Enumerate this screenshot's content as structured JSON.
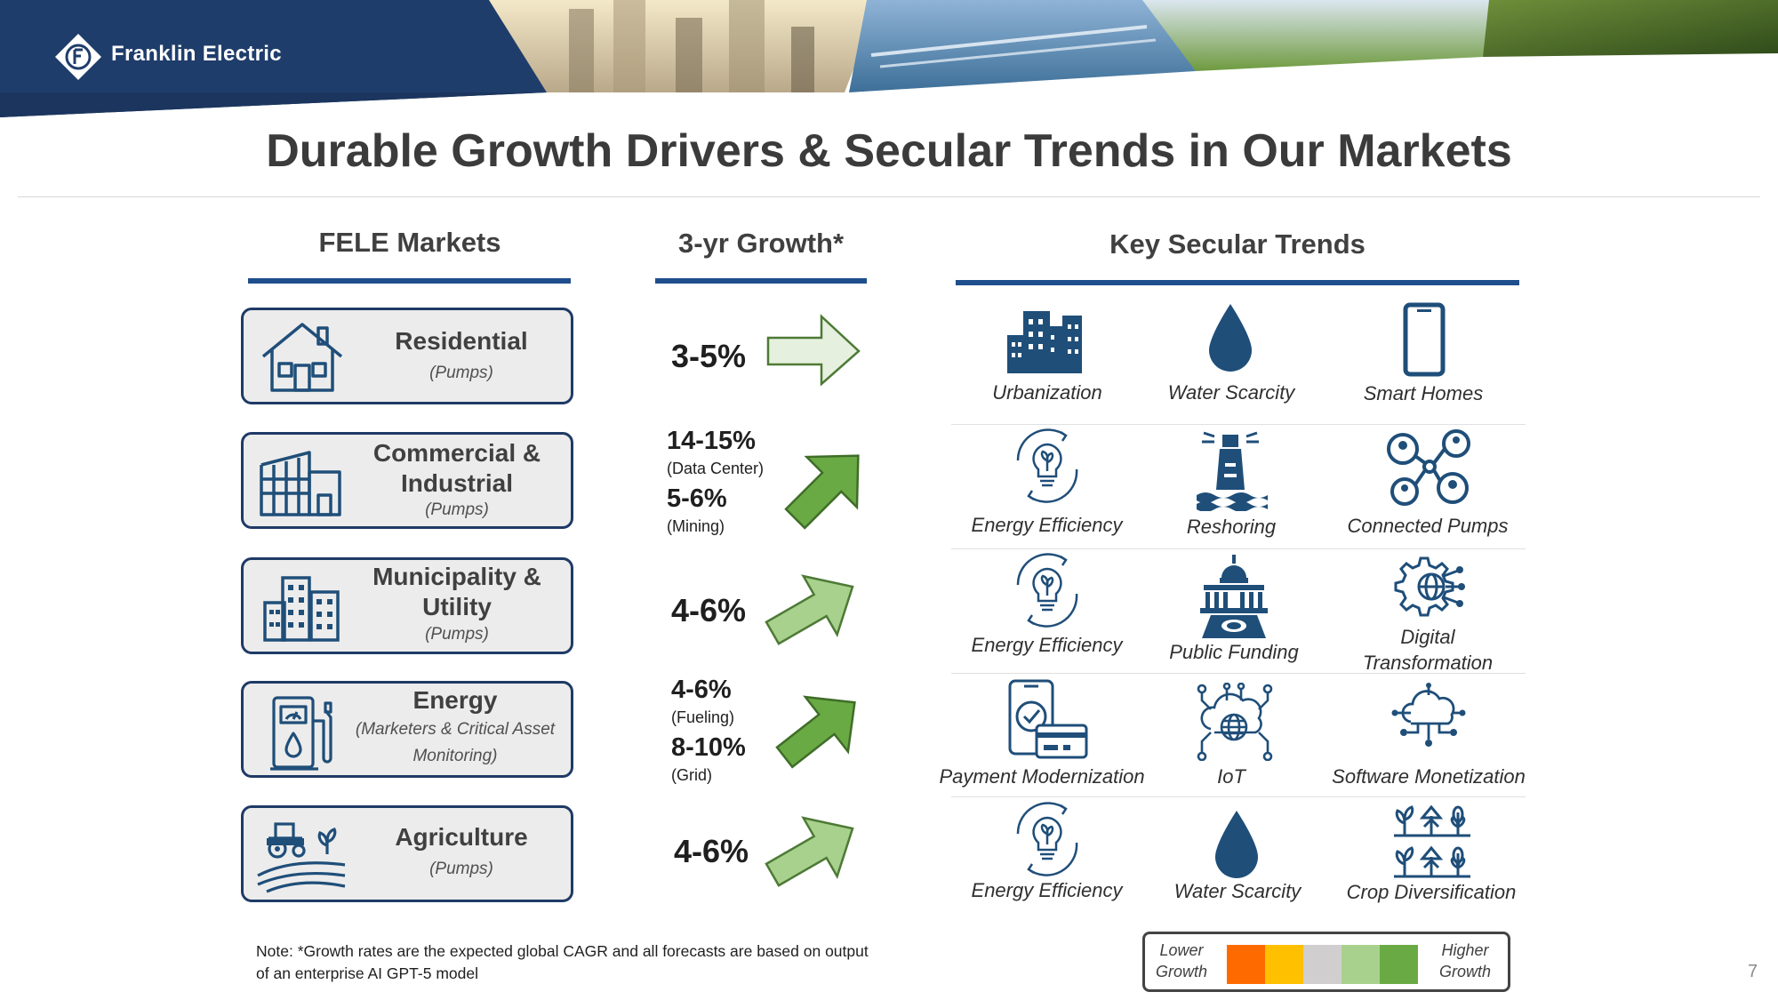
{
  "brand": {
    "name": "Franklin Electric"
  },
  "title": "Durable Growth Drivers & Secular Trends in Our Markets",
  "columns": {
    "markets": "FELE Markets",
    "growth": "3-yr Growth*",
    "trends": "Key Secular Trends"
  },
  "markets": [
    {
      "name": "Residential",
      "sub": "(Pumps)",
      "icon": "house-icon",
      "growth": [
        {
          "value": "3-5%",
          "segment": ""
        }
      ],
      "arrow_color": "#e6f0de",
      "trends": [
        {
          "label": "Urbanization",
          "icon": "city-buildings-icon"
        },
        {
          "label": "Water Scarcity",
          "icon": "water-drop-icon"
        },
        {
          "label": "Smart Homes",
          "icon": "smartphone-icon"
        }
      ]
    },
    {
      "name": "Commercial & Industrial",
      "sub": "(Pumps)",
      "icon": "factory-icon",
      "growth": [
        {
          "value": "14-15%",
          "segment": "(Data Center)"
        },
        {
          "value": "5-6%",
          "segment": "(Mining)"
        }
      ],
      "arrow_color": "#6aaa44",
      "trends": [
        {
          "label": "Energy Efficiency",
          "icon": "efficiency-bulb-icon"
        },
        {
          "label": "Reshoring",
          "icon": "lighthouse-icon"
        },
        {
          "label": "Connected Pumps",
          "icon": "connected-users-icon"
        }
      ]
    },
    {
      "name": "Municipality & Utility",
      "sub": "(Pumps)",
      "icon": "municipal-buildings-icon",
      "growth": [
        {
          "value": "4-6%",
          "segment": ""
        }
      ],
      "arrow_color": "#a9d18e",
      "trends": [
        {
          "label": "Energy Efficiency",
          "icon": "efficiency-bulb-icon"
        },
        {
          "label": "Public Funding",
          "icon": "capitol-funding-icon"
        },
        {
          "label": "Digital Transformation",
          "icon": "digital-gear-icon"
        }
      ]
    },
    {
      "name": "Energy",
      "sub": "(Marketers & Critical Asset Monitoring)",
      "icon": "fuel-pump-icon",
      "growth": [
        {
          "value": "4-6%",
          "segment": "(Fueling)"
        },
        {
          "value": "8-10%",
          "segment": "(Grid)"
        }
      ],
      "arrow_color": "#6aaa44",
      "trends": [
        {
          "label": "Payment Modernization",
          "icon": "mobile-payment-icon"
        },
        {
          "label": "IoT",
          "icon": "iot-cloud-icon"
        },
        {
          "label": "Software Monetization",
          "icon": "cloud-network-icon"
        }
      ]
    },
    {
      "name": "Agriculture",
      "sub": "(Pumps)",
      "icon": "tractor-field-icon",
      "growth": [
        {
          "value": "4-6%",
          "segment": ""
        }
      ],
      "arrow_color": "#a9d18e",
      "trends": [
        {
          "label": "Energy Efficiency",
          "icon": "efficiency-bulb-icon"
        },
        {
          "label": "Water Scarcity",
          "icon": "water-drop-icon"
        },
        {
          "label": "Crop Diversification",
          "icon": "crops-icon"
        }
      ]
    }
  ],
  "note": "Note: *Growth rates are the expected global CAGR and all forecasts are based on output of an enterprise AI GPT-5 model",
  "legend": {
    "low": "Lower Growth",
    "high": "Higher Growth",
    "scale_colors": [
      "#ff6a00",
      "#ffc000",
      "#d0cece",
      "#a9d18e",
      "#6aaa44"
    ]
  },
  "page_number": "7",
  "colors": {
    "navy": "#1f4e8c",
    "icon_navy": "#1f4e79",
    "box_border": "#1f3a66"
  }
}
